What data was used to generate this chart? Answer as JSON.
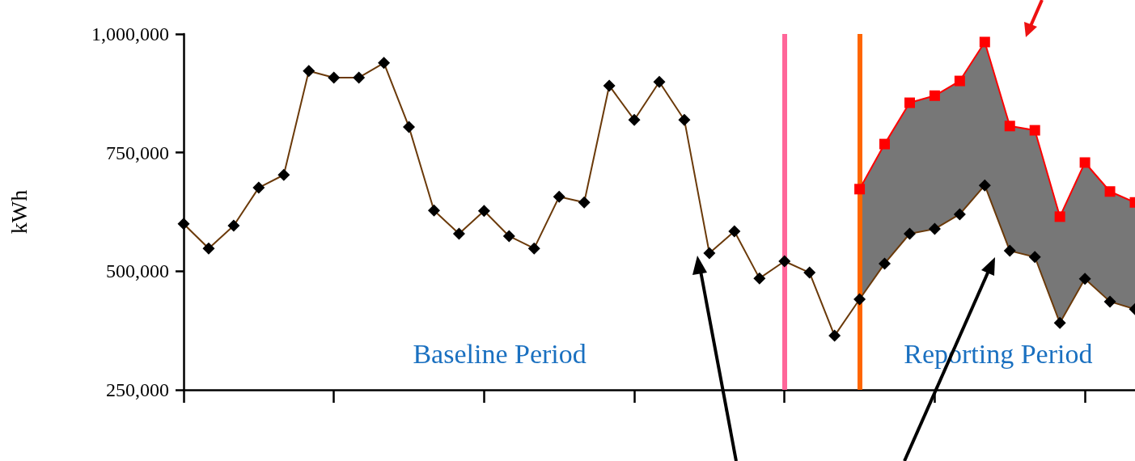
{
  "chart_data": {
    "type": "line",
    "ylabel": "kWh",
    "categories": [
      null,
      null,
      null,
      null,
      null,
      null,
      null,
      null,
      null,
      null,
      null,
      null,
      null,
      null,
      null,
      null,
      null,
      null,
      null,
      null,
      null,
      null,
      null,
      null,
      null,
      null,
      null,
      null,
      null,
      null,
      null,
      null,
      null,
      null,
      null,
      null,
      null,
      null,
      null
    ],
    "ylim": [
      250000,
      1000000
    ],
    "yticks": [
      {
        "value": 250000,
        "label": "250,000"
      },
      {
        "value": 500000,
        "label": "500,000"
      },
      {
        "value": 750000,
        "label": "750,000"
      },
      {
        "value": 1000000,
        "label": "1,000,000"
      }
    ],
    "tick_labels": "y",
    "line_style": "solid",
    "series": [
      {
        "color": "#6b3a0a",
        "marker": "diamond",
        "values": [
          600000,
          548000,
          596000,
          676000,
          703000,
          922000,
          908000,
          908000,
          939000,
          804000,
          628000,
          579000,
          627000,
          574000,
          548000,
          657000,
          645000,
          891000,
          819000,
          899000,
          819000,
          538000,
          584000,
          485000,
          521000,
          497000,
          364000,
          441000,
          516000,
          579000,
          589000,
          620000,
          681000,
          543000,
          530000,
          391000,
          484000,
          436000,
          420000
        ]
      },
      {
        "color": "#ff0000",
        "marker": "square",
        "values": [
          null,
          null,
          null,
          null,
          null,
          null,
          null,
          null,
          null,
          null,
          null,
          null,
          null,
          null,
          null,
          null,
          null,
          null,
          null,
          null,
          null,
          null,
          null,
          null,
          null,
          null,
          null,
          673000,
          768000,
          855000,
          870000,
          901000,
          983000,
          806000,
          797000,
          615000,
          729000,
          668000,
          645000
        ],
        "lower": [
          null,
          null,
          null,
          null,
          null,
          null,
          null,
          null,
          null,
          null,
          null,
          null,
          null,
          null,
          null,
          null,
          null,
          null,
          null,
          null,
          null,
          null,
          null,
          null,
          null,
          null,
          null,
          441000,
          516000,
          579000,
          589000,
          620000,
          681000,
          543000,
          530000,
          391000,
          484000,
          436000,
          420000
        ],
        "upper": [
          null,
          null,
          null,
          null,
          null,
          null,
          null,
          null,
          null,
          null,
          null,
          null,
          null,
          null,
          null,
          null,
          null,
          null,
          null,
          null,
          null,
          null,
          null,
          null,
          null,
          null,
          null,
          673000,
          768000,
          855000,
          870000,
          901000,
          983000,
          806000,
          797000,
          615000,
          729000,
          668000,
          645000
        ]
      }
    ],
    "annotations": [
      "Baseline Period",
      "Reporting Period"
    ]
  }
}
